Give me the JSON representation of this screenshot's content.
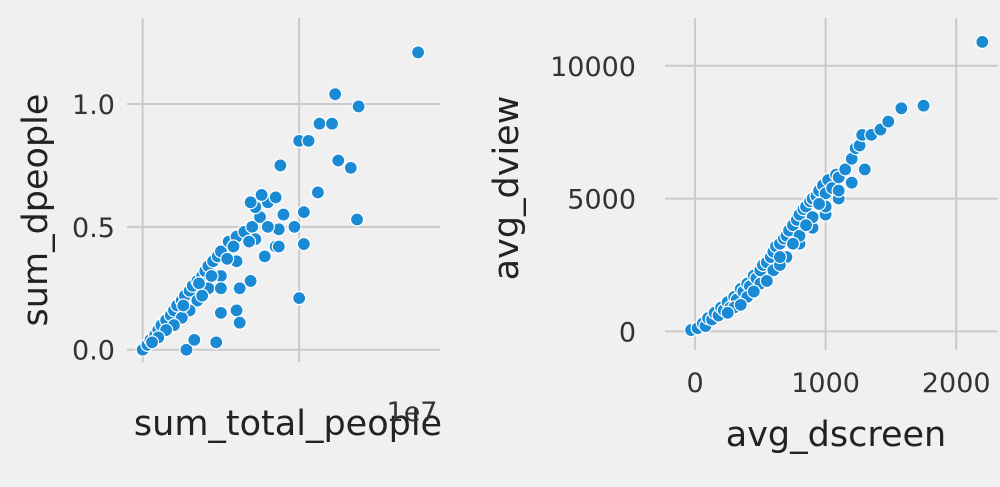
{
  "chart_data": [
    {
      "type": "scatter",
      "xlabel": "sum_total_people",
      "ylabel": "sum_dpeople",
      "x_offset_label": "1e7",
      "xlim": [
        -0.1,
        1.9
      ],
      "ylim": [
        -0.05,
        1.35
      ],
      "xticks": [
        0,
        1
      ],
      "xtick_labels": [
        "",
        ""
      ],
      "yticks": [
        0.0,
        0.5,
        1.0
      ],
      "ytick_labels": [
        "0.0",
        "0.5",
        "1.0"
      ],
      "grid": true,
      "color": "#1a8ad4",
      "points": [
        [
          0.0,
          0.0
        ],
        [
          0.03,
          0.02
        ],
        [
          0.05,
          0.04
        ],
        [
          0.08,
          0.06
        ],
        [
          0.1,
          0.08
        ],
        [
          0.12,
          0.1
        ],
        [
          0.15,
          0.12
        ],
        [
          0.18,
          0.14
        ],
        [
          0.2,
          0.16
        ],
        [
          0.22,
          0.18
        ],
        [
          0.25,
          0.2
        ],
        [
          0.27,
          0.22
        ],
        [
          0.3,
          0.24
        ],
        [
          0.32,
          0.26
        ],
        [
          0.35,
          0.28
        ],
        [
          0.38,
          0.3
        ],
        [
          0.4,
          0.32
        ],
        [
          0.42,
          0.34
        ],
        [
          0.45,
          0.36
        ],
        [
          0.48,
          0.38
        ],
        [
          0.5,
          0.4
        ],
        [
          0.55,
          0.44
        ],
        [
          0.6,
          0.46
        ],
        [
          0.65,
          0.48
        ],
        [
          0.7,
          0.5
        ],
        [
          0.75,
          0.54
        ],
        [
          0.8,
          0.6
        ],
        [
          0.85,
          0.62
        ],
        [
          0.9,
          0.55
        ],
        [
          0.72,
          0.45
        ],
        [
          0.6,
          0.36
        ],
        [
          0.5,
          0.3
        ],
        [
          0.42,
          0.25
        ],
        [
          0.35,
          0.2
        ],
        [
          0.3,
          0.16
        ],
        [
          0.25,
          0.13
        ],
        [
          0.2,
          0.1
        ],
        [
          0.15,
          0.08
        ],
        [
          0.1,
          0.05
        ],
        [
          0.06,
          0.03
        ],
        [
          0.28,
          0.0
        ],
        [
          0.33,
          0.04
        ],
        [
          0.47,
          0.03
        ],
        [
          0.5,
          0.15
        ],
        [
          0.5,
          0.25
        ],
        [
          0.62,
          0.25
        ],
        [
          0.6,
          0.16
        ],
        [
          0.62,
          0.11
        ],
        [
          0.69,
          0.28
        ],
        [
          0.78,
          0.38
        ],
        [
          0.85,
          0.42
        ],
        [
          0.87,
          0.49
        ],
        [
          0.87,
          0.42
        ],
        [
          1.0,
          0.21
        ],
        [
          1.03,
          0.43
        ],
        [
          1.03,
          0.56
        ],
        [
          0.97,
          0.5
        ],
        [
          0.88,
          0.75
        ],
        [
          1.0,
          0.85
        ],
        [
          1.06,
          0.85
        ],
        [
          1.12,
          0.64
        ],
        [
          1.13,
          0.92
        ],
        [
          1.21,
          0.92
        ],
        [
          1.23,
          1.04
        ],
        [
          1.25,
          0.77
        ],
        [
          1.33,
          0.74
        ],
        [
          1.38,
          0.99
        ],
        [
          1.37,
          0.53
        ],
        [
          1.76,
          1.21
        ],
        [
          0.72,
          0.58
        ],
        [
          0.76,
          0.63
        ],
        [
          0.69,
          0.6
        ],
        [
          0.36,
          0.27
        ],
        [
          0.44,
          0.3
        ],
        [
          0.54,
          0.37
        ],
        [
          0.58,
          0.42
        ],
        [
          0.68,
          0.44
        ],
        [
          0.8,
          0.5
        ],
        [
          0.26,
          0.18
        ],
        [
          0.38,
          0.22
        ]
      ]
    },
    {
      "type": "scatter",
      "xlabel": "avg_dscreen",
      "ylabel": "avg_dview",
      "xlim": [
        -230,
        2320
      ],
      "ylim": [
        -700,
        11800
      ],
      "xticks": [
        0,
        1000,
        2000
      ],
      "xtick_labels": [
        "0",
        "1000",
        "2000"
      ],
      "yticks": [
        0,
        5000,
        10000
      ],
      "ytick_labels": [
        "0",
        "5000",
        "10000"
      ],
      "grid": true,
      "color": "#1a8ad4",
      "points": [
        [
          -30,
          50
        ],
        [
          20,
          120
        ],
        [
          60,
          300
        ],
        [
          80,
          200
        ],
        [
          100,
          500
        ],
        [
          130,
          450
        ],
        [
          150,
          700
        ],
        [
          180,
          600
        ],
        [
          200,
          900
        ],
        [
          220,
          800
        ],
        [
          250,
          1100
        ],
        [
          270,
          900
        ],
        [
          300,
          1300
        ],
        [
          320,
          1200
        ],
        [
          350,
          1600
        ],
        [
          370,
          1500
        ],
        [
          400,
          1800
        ],
        [
          420,
          1700
        ],
        [
          450,
          2100
        ],
        [
          470,
          2000
        ],
        [
          500,
          2300
        ],
        [
          520,
          2500
        ],
        [
          550,
          2600
        ],
        [
          580,
          2800
        ],
        [
          600,
          3000
        ],
        [
          620,
          3200
        ],
        [
          650,
          3300
        ],
        [
          680,
          3500
        ],
        [
          700,
          3600
        ],
        [
          720,
          3800
        ],
        [
          750,
          4000
        ],
        [
          780,
          4200
        ],
        [
          800,
          4400
        ],
        [
          830,
          4600
        ],
        [
          850,
          4700
        ],
        [
          880,
          4900
        ],
        [
          900,
          5000
        ],
        [
          930,
          5100
        ],
        [
          950,
          5300
        ],
        [
          980,
          5500
        ],
        [
          1000,
          5200
        ],
        [
          1020,
          5700
        ],
        [
          1050,
          5400
        ],
        [
          1080,
          5900
        ],
        [
          1100,
          5800
        ],
        [
          1150,
          6100
        ],
        [
          1200,
          6500
        ],
        [
          1230,
          6900
        ],
        [
          1260,
          7000
        ],
        [
          1280,
          7400
        ],
        [
          1350,
          7400
        ],
        [
          1420,
          7600
        ],
        [
          1480,
          7900
        ],
        [
          1580,
          8400
        ],
        [
          1750,
          8500
        ],
        [
          2200,
          10900
        ],
        [
          300,
          900
        ],
        [
          400,
          1300
        ],
        [
          500,
          1800
        ],
        [
          600,
          2300
        ],
        [
          700,
          2800
        ],
        [
          800,
          3300
        ],
        [
          900,
          3900
        ],
        [
          1000,
          4400
        ],
        [
          1100,
          5000
        ],
        [
          1200,
          5600
        ],
        [
          1300,
          6100
        ],
        [
          550,
          1900
        ],
        [
          650,
          2500
        ],
        [
          450,
          1500
        ],
        [
          350,
          1000
        ],
        [
          250,
          700
        ],
        [
          800,
          3600
        ],
        [
          900,
          4300
        ],
        [
          1000,
          4700
        ],
        [
          1100,
          5300
        ],
        [
          950,
          4800
        ],
        [
          850,
          4000
        ],
        [
          750,
          3300
        ],
        [
          650,
          2800
        ]
      ]
    }
  ]
}
